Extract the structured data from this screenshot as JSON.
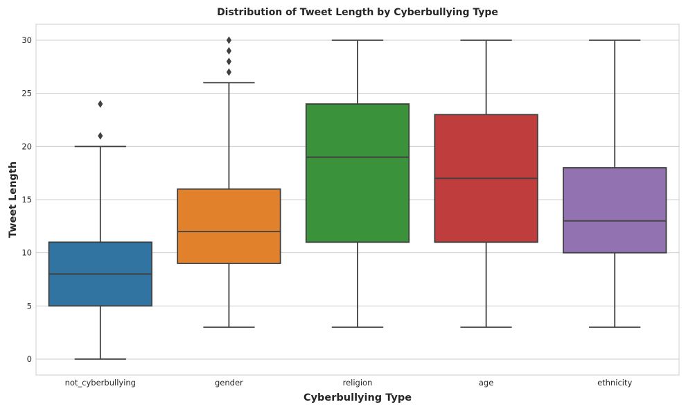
{
  "chart_data": {
    "type": "box",
    "title": "Distribution of Tweet Length by Cyberbullying Type",
    "xlabel": "Cyberbullying Type",
    "ylabel": "Tweet Length",
    "ylim": [
      -1.5,
      31.5
    ],
    "yticks": [
      0,
      5,
      10,
      15,
      20,
      25,
      30
    ],
    "grid": "y",
    "legend": "none",
    "categories": [
      "not_cyberbullying",
      "gender",
      "religion",
      "age",
      "ethnicity"
    ],
    "boxes": [
      {
        "category": "not_cyberbullying",
        "whisker_low": 0,
        "q1": 5,
        "median": 8,
        "q3": 11,
        "whisker_high": 20,
        "outliers": [
          21,
          24
        ],
        "color": "#3274a1"
      },
      {
        "category": "gender",
        "whisker_low": 3,
        "q1": 9,
        "median": 12,
        "q3": 16,
        "whisker_high": 26,
        "outliers": [
          27,
          28,
          29,
          30
        ],
        "color": "#e1812c"
      },
      {
        "category": "religion",
        "whisker_low": 3,
        "q1": 11,
        "median": 19,
        "q3": 24,
        "whisker_high": 30,
        "outliers": [],
        "color": "#3a923a"
      },
      {
        "category": "age",
        "whisker_low": 3,
        "q1": 11,
        "median": 17,
        "q3": 23,
        "whisker_high": 30,
        "outliers": [],
        "color": "#c03d3e"
      },
      {
        "category": "ethnicity",
        "whisker_low": 3,
        "q1": 10,
        "median": 13,
        "q3": 18,
        "whisker_high": 30,
        "outliers": [],
        "color": "#9372b2"
      }
    ]
  }
}
